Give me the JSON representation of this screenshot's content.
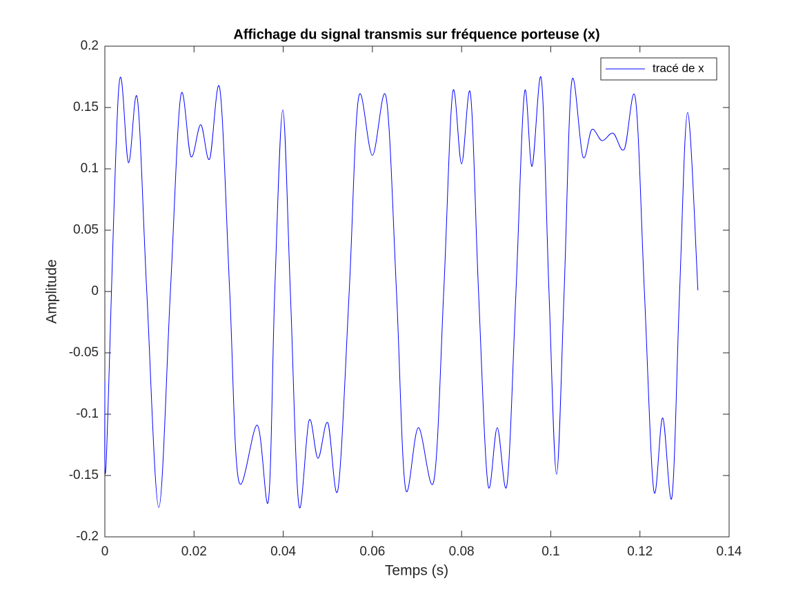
{
  "chart_data": {
    "type": "line",
    "title": "Affichage du signal transmis sur fréquence porteuse (x)",
    "x_label": "Temps (s)",
    "y_label": "Amplitude",
    "x": [
      0,
      0.0003,
      0.0031,
      0.0053,
      0.0073,
      0.0094,
      0.0121,
      0.0147,
      0.017,
      0.0193,
      0.0215,
      0.0235,
      0.0258,
      0.028,
      0.03,
      0.0342,
      0.0367,
      0.0381,
      0.0399,
      0.0416,
      0.0435,
      0.0458,
      0.0478,
      0.05,
      0.0523,
      0.0548,
      0.0569,
      0.06,
      0.0631,
      0.0654,
      0.0674,
      0.0703,
      0.0738,
      0.076,
      0.078,
      0.08,
      0.082,
      0.0838,
      0.0859,
      0.088,
      0.0902,
      0.0922,
      0.0941,
      0.0958,
      0.0979,
      0.0996,
      0.1013,
      0.103,
      0.1047,
      0.1072,
      0.1092,
      0.1115,
      0.114,
      0.1165,
      0.119,
      0.121,
      0.1231,
      0.1251,
      0.1272,
      0.1289,
      0.1307,
      0.133
    ],
    "series": [
      {
        "name": "tracé de x",
        "color": "#0000ff",
        "values": [
          -0.073,
          -0.139,
          0.165,
          0.105,
          0.157,
          0,
          -0.176,
          0,
          0.159,
          0.11,
          0.136,
          0.108,
          0.165,
          0,
          -0.154,
          -0.109,
          -0.17,
          0,
          0.148,
          0,
          -0.174,
          -0.105,
          -0.136,
          -0.107,
          -0.161,
          0,
          0.158,
          0.111,
          0.158,
          0,
          -0.16,
          -0.111,
          -0.154,
          0,
          0.162,
          0.104,
          0.161,
          0,
          -0.157,
          -0.111,
          -0.157,
          0,
          0.162,
          0.102,
          0.173,
          0,
          -0.149,
          0,
          0.171,
          0.11,
          0.132,
          0.123,
          0.129,
          0.116,
          0.157,
          0,
          -0.162,
          -0.103,
          -0.167,
          0,
          0.146,
          0.001
        ]
      }
    ],
    "xlim": [
      0,
      0.14
    ],
    "xticks": [
      0,
      0.02,
      0.04,
      0.06,
      0.08,
      0.1,
      0.12,
      0.14
    ],
    "ylim": [
      -0.2,
      0.2
    ],
    "yticks": [
      -0.2,
      -0.15,
      -0.1,
      -0.05,
      0,
      0.05,
      0.1,
      0.15,
      0.2
    ],
    "grid": false,
    "legend": "top-right"
  }
}
